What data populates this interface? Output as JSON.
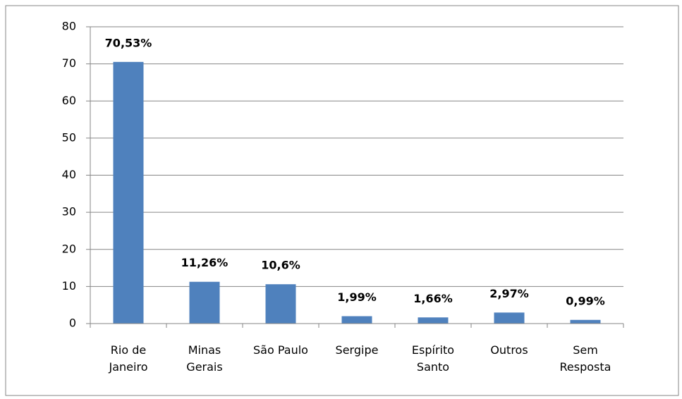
{
  "chart_data": {
    "type": "bar",
    "categories": [
      "Rio de Janeiro",
      "Minas Gerais",
      "São Paulo",
      "Sergipe",
      "Espírito Santo",
      "Outros",
      "Sem Resposta"
    ],
    "values": [
      70.53,
      11.26,
      10.6,
      1.99,
      1.66,
      2.97,
      0.99
    ],
    "value_labels": [
      "70,53%",
      "11,26%",
      "10,6%",
      "1,99%",
      "1,66%",
      "2,97%",
      "0,99%"
    ],
    "color": "#4f81bd",
    "ylim": [
      0,
      80
    ],
    "yticks": [
      0,
      10,
      20,
      30,
      40,
      50,
      60,
      70,
      80
    ],
    "grid": true
  }
}
